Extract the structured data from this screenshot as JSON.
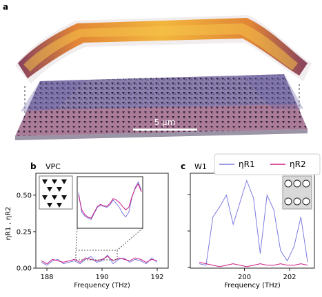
{
  "figure": {
    "panel_a": {
      "label": "a",
      "scale_bar": "5 μm",
      "colors": {
        "field_hot": "#f0a020",
        "field_mid": "#c84a2a",
        "field_cool": "#6a2a4a",
        "crystal_blue": "#6f6fb5",
        "crystal_red": "#b5708a",
        "crystal_base": "#c9c4cf"
      }
    },
    "panel_b": {
      "label": "b",
      "title": "VPC",
      "inset_icon": "triangle-lattice-icon"
    },
    "panel_c": {
      "label": "c",
      "title": "W1",
      "inset_icon": "circle-lattice-icon"
    },
    "series_colors": {
      "eta_R1": "#7d7ae0",
      "eta_R2": "#cc1a80"
    }
  },
  "chart_data": [
    {
      "panel": "b",
      "type": "line",
      "title": "VPC",
      "xlabel": "Frequency (THz)",
      "ylabel": "ηR1 , ηR2",
      "xlim": [
        187.6,
        192.4
      ],
      "ylim": [
        0.0,
        0.65
      ],
      "xticks": [
        "188",
        "190",
        "192"
      ],
      "yticks": [
        "0.00",
        "0.25",
        "0.50"
      ],
      "grid": false,
      "x": [
        187.8,
        188.0,
        188.2,
        188.4,
        188.6,
        188.8,
        189.0,
        189.2,
        189.4,
        189.6,
        189.8,
        190.0,
        190.2,
        190.4,
        190.6,
        190.8,
        191.0,
        191.2,
        191.4,
        191.6,
        191.8,
        192.0
      ],
      "series": [
        {
          "name": "ηR1",
          "color": "#7d7ae0",
          "values": [
            0.04,
            0.02,
            0.05,
            0.06,
            0.03,
            0.04,
            0.05,
            0.03,
            0.06,
            0.08,
            0.04,
            0.05,
            0.09,
            0.03,
            0.06,
            0.07,
            0.04,
            0.06,
            0.05,
            0.03,
            0.07,
            0.04
          ]
        },
        {
          "name": "ηR2",
          "color": "#cc1a80",
          "values": [
            0.05,
            0.03,
            0.06,
            0.05,
            0.04,
            0.05,
            0.06,
            0.04,
            0.07,
            0.06,
            0.05,
            0.06,
            0.08,
            0.05,
            0.07,
            0.06,
            0.05,
            0.07,
            0.06,
            0.04,
            0.06,
            0.05
          ]
        }
      ],
      "inset": {
        "x": [
          0,
          1,
          2,
          3,
          4,
          5,
          6,
          7,
          8,
          9,
          10,
          11,
          12,
          13,
          14,
          15,
          16,
          17,
          18,
          19,
          20
        ],
        "series": [
          {
            "name": "ηR1",
            "values": [
              0.7,
              0.3,
              0.22,
              0.18,
              0.15,
              0.28,
              0.4,
              0.44,
              0.42,
              0.4,
              0.45,
              0.55,
              0.48,
              0.4,
              0.28,
              0.2,
              0.3,
              0.6,
              0.8,
              0.92,
              0.75
            ]
          },
          {
            "name": "ηR2",
            "values": [
              0.65,
              0.35,
              0.25,
              0.2,
              0.18,
              0.3,
              0.42,
              0.46,
              0.43,
              0.42,
              0.48,
              0.58,
              0.55,
              0.5,
              0.42,
              0.35,
              0.4,
              0.62,
              0.78,
              0.88,
              0.72
            ]
          }
        ]
      }
    },
    {
      "panel": "c",
      "type": "line",
      "title": "W1",
      "xlabel": "Frequency (THz)",
      "xlim": [
        197.6,
        203.1
      ],
      "ylim": [
        0.0,
        0.65
      ],
      "xticks": [
        "200",
        "202"
      ],
      "legend": {
        "placement": "top-right",
        "entries": [
          "ηR1",
          "ηR2"
        ]
      },
      "grid": false,
      "x": [
        198.0,
        198.3,
        198.6,
        198.9,
        199.2,
        199.5,
        199.8,
        200.1,
        200.4,
        200.7,
        201.0,
        201.3,
        201.6,
        201.9,
        202.2,
        202.5,
        202.8
      ],
      "series": [
        {
          "name": "ηR1",
          "color": "#7d7ae0",
          "values": [
            0.03,
            0.02,
            0.35,
            0.42,
            0.5,
            0.3,
            0.45,
            0.6,
            0.48,
            0.1,
            0.5,
            0.4,
            0.12,
            0.05,
            0.15,
            0.35,
            0.04
          ]
        },
        {
          "name": "ηR2",
          "color": "#cc1a80",
          "values": [
            0.04,
            0.03,
            0.02,
            0.01,
            0.02,
            0.03,
            0.02,
            0.01,
            0.02,
            0.03,
            0.02,
            0.02,
            0.03,
            0.02,
            0.02,
            0.03,
            0.02
          ]
        }
      ]
    }
  ]
}
